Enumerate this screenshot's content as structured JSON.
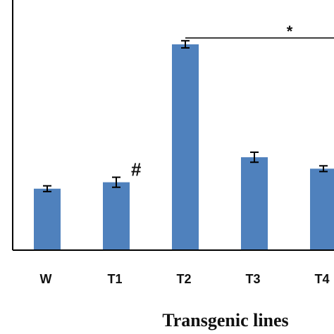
{
  "chart_data": {
    "type": "bar",
    "title": "",
    "xlabel": "Transgenic lines",
    "ylabel": "",
    "categories": [
      "W",
      "T1",
      "T2",
      "T3",
      "T4"
    ],
    "series": [
      {
        "values": [
          0.86,
          0.95,
          2.88,
          1.3,
          1.14
        ],
        "errors": [
          0.04,
          0.07,
          0.05,
          0.07,
          0.04
        ]
      }
    ],
    "ylim": [
      0,
      3.5
    ],
    "grid": false,
    "legend": "none",
    "annotations": [
      {
        "text": "#",
        "target": "T1"
      },
      {
        "text": "*",
        "target": "T2"
      }
    ],
    "colors": {
      "bar": "#4F81BD",
      "axis": "#000000",
      "error": "#000000"
    }
  }
}
